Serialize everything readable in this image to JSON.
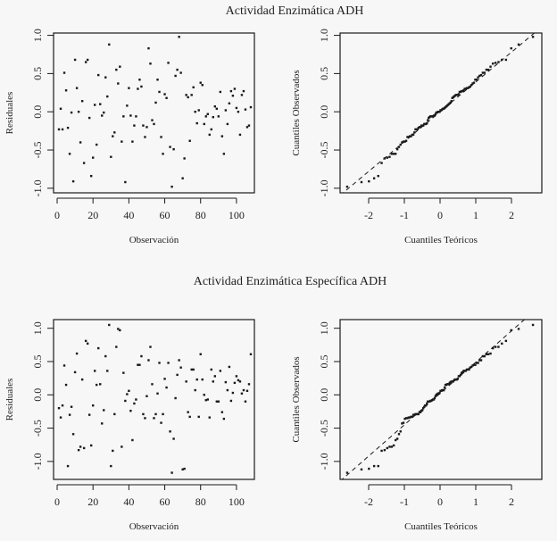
{
  "figure": {
    "background": "#f7f7f7",
    "ink_color": "#1a1a1a"
  },
  "chart_data": [
    {
      "panel": "top-left",
      "type": "scatter",
      "title": "Actividad Enzimática ADH",
      "xlabel": "Observación",
      "ylabel": "Residuales",
      "xlim": [
        -2,
        110
      ],
      "ylim": [
        -1.06,
        1.03
      ],
      "xticks": [
        0,
        20,
        40,
        60,
        80,
        100
      ],
      "xtick_labels": [
        "0",
        "20",
        "40",
        "60",
        "80",
        "100"
      ],
      "yticks": [
        -1.0,
        -0.5,
        0.0,
        0.5,
        1.0
      ],
      "ytick_labels": [
        "-1.0",
        "-0.5",
        "0.0",
        "0.5",
        "1.0"
      ],
      "grid": false,
      "x": [
        1,
        2,
        3,
        4,
        5,
        6,
        7,
        8,
        9,
        10,
        11,
        12,
        13,
        14,
        15,
        16,
        17,
        18,
        19,
        20,
        21,
        22,
        23,
        24,
        25,
        26,
        27,
        28,
        29,
        30,
        31,
        32,
        33,
        34,
        35,
        36,
        37,
        38,
        39,
        40,
        41,
        42,
        43,
        44,
        45,
        46,
        47,
        48,
        49,
        50,
        51,
        52,
        53,
        54,
        55,
        56,
        57,
        58,
        59,
        60,
        61,
        62,
        63,
        64,
        65,
        66,
        67,
        68,
        69,
        70,
        71,
        72,
        73,
        74,
        75,
        76,
        77,
        78,
        79,
        80,
        81,
        82,
        83,
        84,
        85,
        86,
        87,
        88,
        89,
        90,
        91,
        92,
        93,
        94,
        95,
        96,
        97,
        98,
        99,
        100,
        101,
        102,
        103,
        104,
        105,
        106,
        107,
        108
      ],
      "y": [
        -0.23,
        0.04,
        -0.23,
        0.51,
        0.28,
        -0.21,
        -0.55,
        -0.01,
        -0.91,
        0.68,
        0.31,
        0.0,
        -0.4,
        0.14,
        -0.67,
        0.65,
        0.68,
        -0.08,
        -0.84,
        -0.6,
        0.09,
        -0.43,
        0.48,
        0.1,
        -0.05,
        -0.01,
        0.45,
        0.2,
        0.88,
        -0.59,
        -0.32,
        -0.27,
        0.55,
        0.37,
        0.59,
        -0.39,
        -0.06,
        -0.92,
        0.08,
        0.31,
        -0.05,
        -0.39,
        -0.18,
        -0.06,
        0.3,
        0.42,
        0.33,
        -0.18,
        -0.33,
        -0.2,
        0.83,
        0.63,
        -0.11,
        -0.16,
        0.12,
        0.42,
        0.26,
        -0.33,
        -0.55,
        0.23,
        0.18,
        0.64,
        -0.46,
        -0.98,
        -0.49,
        0.47,
        0.55,
        0.98,
        0.51,
        -0.87,
        -0.61,
        0.22,
        0.19,
        -0.38,
        0.22,
        0.32,
        0.0,
        -0.15,
        0.02,
        0.38,
        0.35,
        -0.16,
        -0.06,
        -0.03,
        -0.3,
        -0.23,
        -0.07,
        0.07,
        0.04,
        -0.06,
        0.26,
        -0.32,
        -0.55,
        0.02,
        -0.16,
        0.11,
        0.27,
        0.21,
        0.3,
        0.05,
        0.0,
        -0.3,
        0.22,
        0.27,
        0.03,
        -0.2,
        -0.18,
        0.06
      ]
    },
    {
      "panel": "top-right",
      "type": "scatter",
      "title": "Actividad Enzimática ADH",
      "xlabel": "Cuantiles Teóricos",
      "ylabel": "Cuantiles Observados",
      "xlim": [
        -2.8,
        2.85
      ],
      "ylim": [
        -1.06,
        1.03
      ],
      "xticks": [
        -2,
        -1,
        0,
        1,
        2
      ],
      "xtick_labels": [
        "-2",
        "-1",
        "0",
        "1",
        "2"
      ],
      "yticks": [
        -1.0,
        -0.5,
        0.0,
        0.5,
        1.0
      ],
      "ytick_labels": [
        "-1.0",
        "-0.5",
        "0.0",
        "0.5",
        "1.0"
      ],
      "grid": false,
      "reference_line": {
        "intercept": 0.0,
        "slope": 0.39,
        "style": "dashed"
      },
      "qq_from_panel": "top-left"
    },
    {
      "panel": "bottom-left",
      "type": "scatter",
      "title": "Actividad Enzimática Específica ADH",
      "xlabel": "Observación",
      "ylabel": "Residuales",
      "xlim": [
        -2,
        110
      ],
      "ylim": [
        -1.27,
        1.13
      ],
      "xticks": [
        0,
        20,
        40,
        60,
        80,
        100
      ],
      "xtick_labels": [
        "0",
        "20",
        "40",
        "60",
        "80",
        "100"
      ],
      "yticks": [
        -1.0,
        -0.5,
        0.0,
        0.5,
        1.0
      ],
      "ytick_labels": [
        "-1.0",
        "-0.5",
        "0.0",
        "0.5",
        "1.0"
      ],
      "grid": false,
      "x": [
        1,
        2,
        3,
        4,
        5,
        6,
        7,
        8,
        9,
        10,
        11,
        12,
        13,
        14,
        15,
        16,
        17,
        18,
        19,
        20,
        21,
        22,
        23,
        24,
        25,
        26,
        27,
        28,
        29,
        30,
        31,
        32,
        33,
        34,
        35,
        36,
        37,
        38,
        39,
        40,
        41,
        42,
        43,
        44,
        45,
        46,
        47,
        48,
        49,
        50,
        51,
        52,
        53,
        54,
        55,
        56,
        57,
        58,
        59,
        60,
        61,
        62,
        63,
        64,
        65,
        66,
        67,
        68,
        69,
        70,
        71,
        72,
        73,
        74,
        75,
        76,
        77,
        78,
        79,
        80,
        81,
        82,
        83,
        84,
        85,
        86,
        87,
        88,
        89,
        90,
        91,
        92,
        93,
        94,
        95,
        96,
        97,
        98,
        99,
        100,
        101,
        102,
        103,
        104,
        105,
        106,
        107,
        108
      ],
      "y": [
        -0.2,
        -0.34,
        -0.16,
        0.44,
        0.15,
        -1.07,
        -0.3,
        -0.18,
        -0.59,
        0.34,
        0.62,
        -0.83,
        -0.78,
        0.23,
        -0.8,
        0.81,
        0.77,
        -0.3,
        -0.76,
        -0.16,
        0.36,
        0.15,
        0.7,
        0.16,
        -0.43,
        -0.23,
        0.58,
        0.36,
        1.05,
        -1.07,
        -0.84,
        -0.29,
        0.72,
        0.99,
        0.97,
        -0.78,
        0.33,
        -0.09,
        0.01,
        0.06,
        -0.24,
        -0.68,
        -0.13,
        -0.07,
        0.45,
        0.45,
        0.58,
        -0.29,
        -0.35,
        -0.02,
        0.52,
        0.72,
        0.16,
        -0.35,
        -0.29,
        0.02,
        0.48,
        -0.42,
        -0.29,
        0.24,
        0.11,
        0.48,
        -0.55,
        -1.17,
        -0.66,
        -0.05,
        0.3,
        0.52,
        0.41,
        -1.12,
        -1.11,
        0.2,
        -0.26,
        -0.33,
        0.38,
        0.38,
        0.07,
        0.23,
        -0.33,
        0.61,
        0.23,
        0.0,
        -0.08,
        -0.07,
        -0.34,
        0.38,
        0.2,
        0.28,
        -0.1,
        -0.1,
        0.36,
        -0.26,
        -0.36,
        0.19,
        0.07,
        0.42,
        -0.09,
        0.03,
        0.18,
        0.28,
        0.22,
        0.2,
        0.02,
        0.07,
        -0.1,
        0.06,
        0.16,
        0.61
      ]
    },
    {
      "panel": "bottom-right",
      "type": "scatter",
      "title": "Actividad Enzimática Específica ADH",
      "xlabel": "Cuantiles Teóricos",
      "ylabel": "Cuantiles Observados",
      "xlim": [
        -2.8,
        2.85
      ],
      "ylim": [
        -1.27,
        1.13
      ],
      "xticks": [
        -2,
        -1,
        0,
        1,
        2
      ],
      "xtick_labels": [
        "-2",
        "-1",
        "0",
        "1",
        "2"
      ],
      "yticks": [
        -1.0,
        -0.5,
        0.0,
        0.5,
        1.0
      ],
      "ytick_labels": [
        "-1.0",
        "-0.5",
        "0.0",
        "0.5",
        "1.0"
      ],
      "grid": false,
      "reference_line": {
        "intercept": 0.02,
        "slope": 0.47,
        "style": "dashed"
      },
      "qq_from_panel": "bottom-left"
    }
  ],
  "titles": {
    "top": "Actividad Enzimática ADH",
    "bottom": "Actividad Enzimática Específica ADH"
  }
}
